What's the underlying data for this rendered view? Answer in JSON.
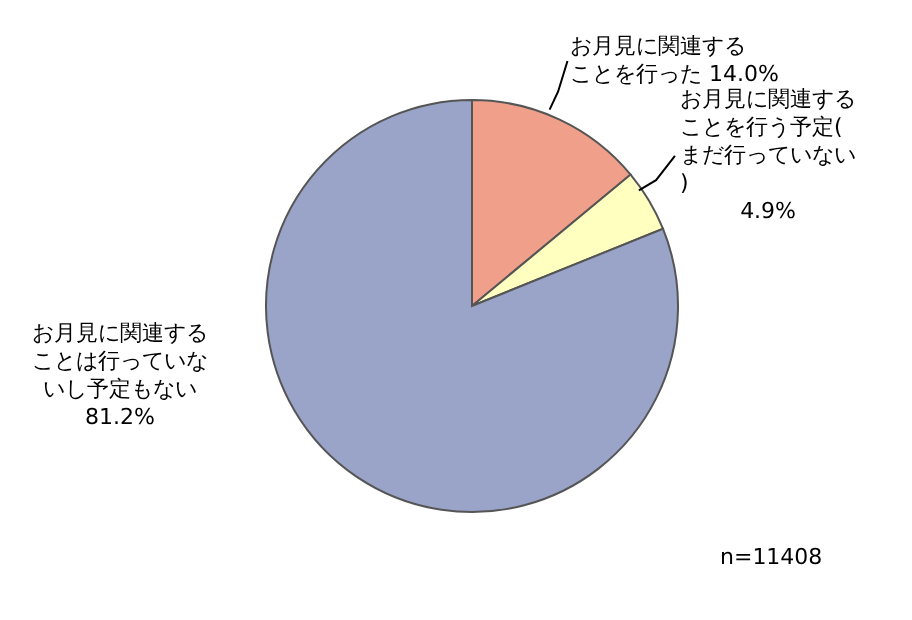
{
  "chart_data": {
    "type": "pie",
    "categories": [
      "お月見に関連することを行った",
      "お月見に関連することを行う予定(まだ行っていない)",
      "お月見に関連することは行っていないし予定もない"
    ],
    "values": [
      14.0,
      4.9,
      81.2
    ],
    "value_labels": [
      "14.0%",
      "4.9%",
      "81.2%"
    ],
    "colors": [
      "#f0a08a",
      "#ffffc0",
      "#9aa3c8"
    ],
    "annotations": [
      "n=11408"
    ],
    "legend": false
  }
}
